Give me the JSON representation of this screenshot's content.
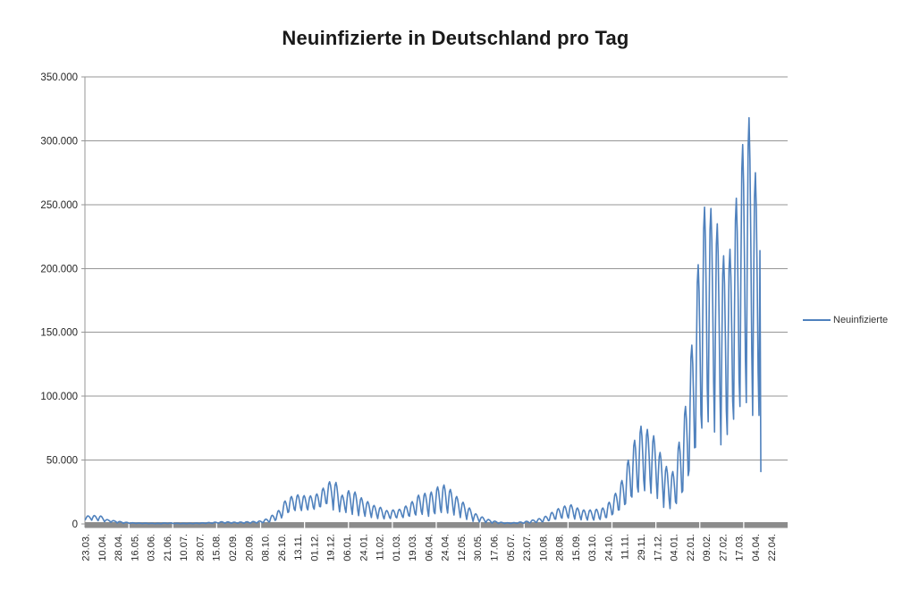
{
  "title": "Neuinfizierte in Deutschland pro Tag",
  "legend": {
    "label": "Neuinfizierte"
  },
  "chart_data": {
    "type": "line",
    "title": "Neuinfizierte in Deutschland pro Tag",
    "series_name": "Neuinfizierte",
    "line_color": "#4F81BD",
    "gridline_color": "#969696",
    "axis_line_color": "#969696",
    "axis_band_color": "#8C8C8C",
    "text_color": "#262626",
    "legend_position": "right",
    "grid": true,
    "ylim": [
      0,
      350000
    ],
    "y_tick_step": 50000,
    "y_tick_labels": [
      "0",
      "50.000",
      "100.000",
      "150.000",
      "200.000",
      "250.000",
      "300.000",
      "350.000"
    ],
    "x_tick_labels": [
      "23.03.",
      "10.04.",
      "28.04.",
      "16.05.",
      "03.06.",
      "21.06.",
      "10.07.",
      "28.07.",
      "15.08.",
      "02.09.",
      "20.09.",
      "08.10.",
      "26.10.",
      "13.11.",
      "01.12.",
      "19.12.",
      "06.01.",
      "24.01.",
      "11.02.",
      "01.03.",
      "19.03.",
      "06.04.",
      "24.04.",
      "12.05.",
      "30.05.",
      "17.06.",
      "05.07.",
      "23.07.",
      "10.08.",
      "28.08.",
      "15.09.",
      "03.10.",
      "24.10.",
      "11.11.",
      "29.11.",
      "17.12.",
      "04.01.",
      "22.01.",
      "09.02.",
      "27.02.",
      "17.03.",
      "04.04.",
      "22.04."
    ],
    "x_label_interval": 18,
    "total_categories": 774,
    "x_start_date": "23.03.2020",
    "x_end_date": "22.04.2022",
    "weekday_pattern": [
      0.0,
      0.5,
      0.9,
      1.0,
      0.85,
      0.55,
      0.18
    ],
    "weekly_envelope": [
      [
        3400,
        6300
      ],
      [
        2900,
        6600
      ],
      [
        2500,
        6200
      ],
      [
        1800,
        3400
      ],
      [
        1300,
        2600
      ],
      [
        700,
        1900
      ],
      [
        500,
        1300
      ],
      [
        350,
        900
      ],
      [
        300,
        700
      ],
      [
        250,
        600
      ],
      [
        200,
        500
      ],
      [
        180,
        450
      ],
      [
        250,
        700
      ],
      [
        250,
        750
      ],
      [
        200,
        500
      ],
      [
        180,
        450
      ],
      [
        200,
        500
      ],
      [
        250,
        650
      ],
      [
        300,
        850
      ],
      [
        400,
        1100
      ],
      [
        500,
        1400
      ],
      [
        600,
        1700
      ],
      [
        600,
        1600
      ],
      [
        500,
        1400
      ],
      [
        500,
        1500
      ],
      [
        600,
        1700
      ],
      [
        700,
        1900
      ],
      [
        800,
        2300
      ],
      [
        1100,
        3800
      ],
      [
        1800,
        6800
      ],
      [
        3500,
        10500
      ],
      [
        7000,
        18000
      ],
      [
        9500,
        21500
      ],
      [
        10500,
        22800
      ],
      [
        10500,
        22200
      ],
      [
        11000,
        22000
      ],
      [
        11500,
        23500
      ],
      [
        13500,
        28000
      ],
      [
        16000,
        33000
      ],
      [
        11000,
        32500
      ],
      [
        9500,
        22500
      ],
      [
        9000,
        26000
      ],
      [
        7500,
        25000
      ],
      [
        6500,
        20500
      ],
      [
        6000,
        17500
      ],
      [
        5000,
        14500
      ],
      [
        4200,
        13000
      ],
      [
        4000,
        10500
      ],
      [
        4200,
        11000
      ],
      [
        4800,
        11500
      ],
      [
        5000,
        14000
      ],
      [
        6000,
        17500
      ],
      [
        7000,
        22500
      ],
      [
        7500,
        24000
      ],
      [
        6000,
        25000
      ],
      [
        8000,
        29000
      ],
      [
        9000,
        30500
      ],
      [
        8500,
        27000
      ],
      [
        7000,
        21500
      ],
      [
        5000,
        17000
      ],
      [
        3500,
        12500
      ],
      [
        2000,
        8000
      ],
      [
        1500,
        5500
      ],
      [
        1000,
        3500
      ],
      [
        600,
        2200
      ],
      [
        400,
        1300
      ],
      [
        300,
        950
      ],
      [
        300,
        1000
      ],
      [
        450,
        1500
      ],
      [
        600,
        2100
      ],
      [
        900,
        3100
      ],
      [
        1200,
        4200
      ],
      [
        1800,
        6000
      ],
      [
        2800,
        9000
      ],
      [
        3800,
        12000
      ],
      [
        4500,
        14000
      ],
      [
        4600,
        15000
      ],
      [
        3800,
        12500
      ],
      [
        3200,
        11000
      ],
      [
        3000,
        11000
      ],
      [
        3000,
        11500
      ],
      [
        3500,
        12500
      ],
      [
        5000,
        17000
      ],
      [
        8000,
        24000
      ],
      [
        11000,
        34000
      ],
      [
        16000,
        50000
      ],
      [
        21000,
        65500
      ],
      [
        25000,
        76500
      ],
      [
        26000,
        74000
      ],
      [
        24000,
        69000
      ],
      [
        20000,
        56000
      ],
      [
        13000,
        45000
      ],
      [
        12000,
        41000
      ],
      [
        16000,
        64000
      ],
      [
        26000,
        92000
      ],
      [
        42000,
        140000
      ],
      [
        60000,
        203000
      ],
      [
        75000,
        248000
      ],
      [
        80000,
        247000
      ],
      [
        72000,
        235000
      ],
      [
        62000,
        210000
      ],
      [
        70000,
        215000
      ],
      [
        82000,
        255000
      ],
      [
        92000,
        297000
      ],
      [
        95000,
        318000
      ],
      [
        85000,
        275000
      ]
    ],
    "tail_values": [
      85000,
      214000,
      41000
    ],
    "peak_value": 318000,
    "last_value": 41000
  }
}
